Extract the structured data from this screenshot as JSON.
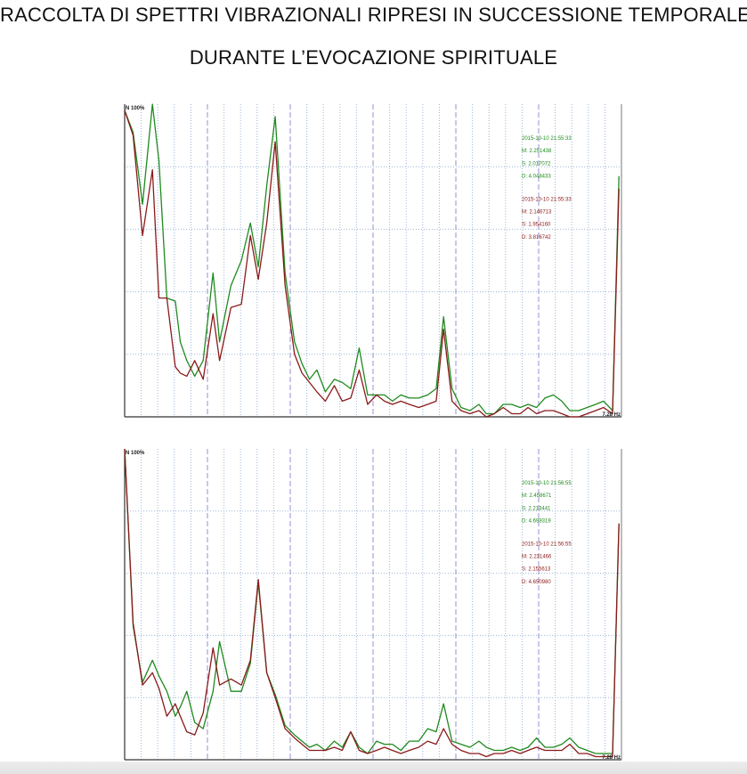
{
  "title_line1": "RACCOLTA DI SPETTRI VIBRAZIONALI RIPRESI IN SUCCESSIONE TEMPORALE",
  "title_line2": "DURANTE L’EVOCAZIONE SPIRITUALE",
  "colors": {
    "green": "#1f8a1f",
    "red": "#8b1a1a",
    "grid_dotted": "#9bb7d8",
    "grid_dashed": "#9a8fd0",
    "axis": "#333333"
  },
  "chart_data": [
    {
      "type": "line",
      "ylabel_top": "N 100%",
      "xlabel_right": "7.28 Hz",
      "xlim": [
        0,
        100
      ],
      "ylim": [
        0,
        100
      ],
      "grid": true,
      "legend": [
        {
          "series": "green",
          "lines": [
            "2015-10-10 21:55:33",
            "M: 2.251438",
            "S: 2.017072",
            "D: 4.048433"
          ]
        },
        {
          "series": "red",
          "lines": [
            "2015-10-10 21:55:33",
            "M: 2.146713",
            "S: 1.954160",
            "D: 3.816742"
          ]
        }
      ],
      "series": [
        {
          "color": "green",
          "x": [
            0,
            1.7,
            3.6,
            5.6,
            6.9,
            8.5,
            10.2,
            11.2,
            12.5,
            14.1,
            15.8,
            17.8,
            19.1,
            21.4,
            23.5,
            25.3,
            26.9,
            28.6,
            30.3,
            32.3,
            34.2,
            35.7,
            37.2,
            38.7,
            40.4,
            42.2,
            43.8,
            45.5,
            47.2,
            48.9,
            50.7,
            52.3,
            53.9,
            55.6,
            57.3,
            59.2,
            61.0,
            62.7,
            64.2,
            65.9,
            67.7,
            69.5,
            71.3,
            72.8,
            74.4,
            76.2,
            77.9,
            79.6,
            81.2,
            82.9,
            84.6,
            86.3,
            88.0,
            89.6,
            91.4,
            93.1,
            94.8,
            96.4,
            98.2,
            99.5
          ],
          "y": [
            98,
            91,
            68,
            100,
            82,
            38,
            37,
            24,
            18,
            13,
            18,
            46,
            24,
            42,
            50,
            62,
            48,
            74,
            96,
            46,
            24,
            17,
            12,
            15,
            8,
            12,
            11,
            9,
            22,
            7,
            7,
            7,
            5,
            7,
            6,
            6,
            7,
            9,
            32,
            9,
            3,
            2,
            4,
            1,
            1,
            4,
            4,
            3,
            4,
            3,
            6,
            7,
            5,
            2,
            2,
            3,
            4,
            5,
            2,
            77
          ]
        },
        {
          "color": "red",
          "x": [
            0,
            1.7,
            3.6,
            5.6,
            6.9,
            8.5,
            10.2,
            11.2,
            12.5,
            14.1,
            15.8,
            17.8,
            19.1,
            21.4,
            23.5,
            25.3,
            26.9,
            28.6,
            30.3,
            32.3,
            34.2,
            35.7,
            37.2,
            38.7,
            40.4,
            42.2,
            43.8,
            45.5,
            47.2,
            48.9,
            50.7,
            52.3,
            53.9,
            55.6,
            57.3,
            59.2,
            61.0,
            62.7,
            64.2,
            65.9,
            67.7,
            69.5,
            71.3,
            72.8,
            74.4,
            76.2,
            77.9,
            79.6,
            81.2,
            82.9,
            84.6,
            86.3,
            88.0,
            89.6,
            91.4,
            93.1,
            94.8,
            96.4,
            98.2,
            99.5
          ],
          "y": [
            98,
            90,
            58,
            79,
            38,
            38,
            16,
            14,
            13,
            18,
            12,
            33,
            18,
            35,
            36,
            58,
            44,
            62,
            88,
            42,
            20,
            14,
            11,
            8,
            5,
            10,
            5,
            6,
            15,
            4,
            7,
            5,
            4,
            5,
            4,
            3,
            4,
            5,
            28,
            5,
            2,
            1,
            2,
            0,
            1,
            3,
            1,
            1,
            3,
            1,
            2,
            2,
            1,
            0,
            0,
            1,
            2,
            3,
            1,
            73
          ]
        }
      ]
    },
    {
      "type": "line",
      "ylabel_top": "N 100%",
      "xlabel_right": "7.28 Hz",
      "xlim": [
        0,
        100
      ],
      "ylim": [
        0,
        100
      ],
      "grid": true,
      "legend": [
        {
          "series": "green",
          "lines": [
            "2015-10-10 21:56:55",
            "M: 2.458671",
            "S: 2.213441",
            "D: 4.699319"
          ]
        },
        {
          "series": "red",
          "lines": [
            "2015-10-10 21:56:55",
            "M: 2.231466",
            "S: 2.155613",
            "D: 4.650980"
          ]
        }
      ],
      "series": [
        {
          "color": "green",
          "x": [
            0,
            1.7,
            3.6,
            5.6,
            6.9,
            8.5,
            10.2,
            11.2,
            12.5,
            14.1,
            15.8,
            17.8,
            19.1,
            21.4,
            23.5,
            25.3,
            26.9,
            28.6,
            30.3,
            32.3,
            34.2,
            35.7,
            37.2,
            38.7,
            40.4,
            42.2,
            43.8,
            45.5,
            47.2,
            48.9,
            50.7,
            52.3,
            53.9,
            55.6,
            57.3,
            59.2,
            61.0,
            62.7,
            64.2,
            65.9,
            67.7,
            69.5,
            71.3,
            72.8,
            74.4,
            76.2,
            77.9,
            79.6,
            81.2,
            82.9,
            84.6,
            86.3,
            88.0,
            89.6,
            91.4,
            93.1,
            94.8,
            96.4,
            98.2,
            99.5
          ],
          "y": [
            100,
            43,
            25,
            32,
            27,
            22,
            14,
            17,
            22,
            12,
            10,
            22,
            38,
            22,
            22,
            31,
            57,
            28,
            21,
            11,
            8,
            6,
            4,
            5,
            3,
            6,
            4,
            9,
            4,
            2,
            6,
            5,
            5,
            3,
            6,
            6,
            10,
            9,
            18,
            6,
            5,
            4,
            6,
            4,
            3,
            3,
            4,
            3,
            4,
            7,
            4,
            4,
            5,
            7,
            4,
            3,
            2,
            2,
            2,
            76
          ]
        },
        {
          "color": "red",
          "x": [
            0,
            1.7,
            3.6,
            5.6,
            6.9,
            8.5,
            10.2,
            11.2,
            12.5,
            14.1,
            15.8,
            17.8,
            19.1,
            21.4,
            23.5,
            25.3,
            26.9,
            28.6,
            30.3,
            32.3,
            34.2,
            35.7,
            37.2,
            38.7,
            40.4,
            42.2,
            43.8,
            45.5,
            47.2,
            48.9,
            50.7,
            52.3,
            53.9,
            55.6,
            57.3,
            59.2,
            61.0,
            62.7,
            64.2,
            65.9,
            67.7,
            69.5,
            71.3,
            72.8,
            74.4,
            76.2,
            77.9,
            79.6,
            81.2,
            82.9,
            84.6,
            86.3,
            88.0,
            89.6,
            91.4,
            93.1,
            94.8,
            96.4,
            98.2,
            99.5
          ],
          "y": [
            100,
            44,
            24,
            28,
            23,
            14,
            18,
            14,
            9,
            8,
            15,
            36,
            24,
            26,
            24,
            32,
            58,
            28,
            20,
            10,
            7,
            5,
            3,
            3,
            3,
            4,
            3,
            9,
            3,
            2,
            3,
            4,
            3,
            2,
            3,
            4,
            6,
            5,
            10,
            5,
            3,
            2,
            2,
            1,
            2,
            2,
            3,
            2,
            3,
            4,
            3,
            3,
            3,
            5,
            2,
            2,
            1,
            1,
            1,
            76
          ]
        }
      ]
    }
  ]
}
